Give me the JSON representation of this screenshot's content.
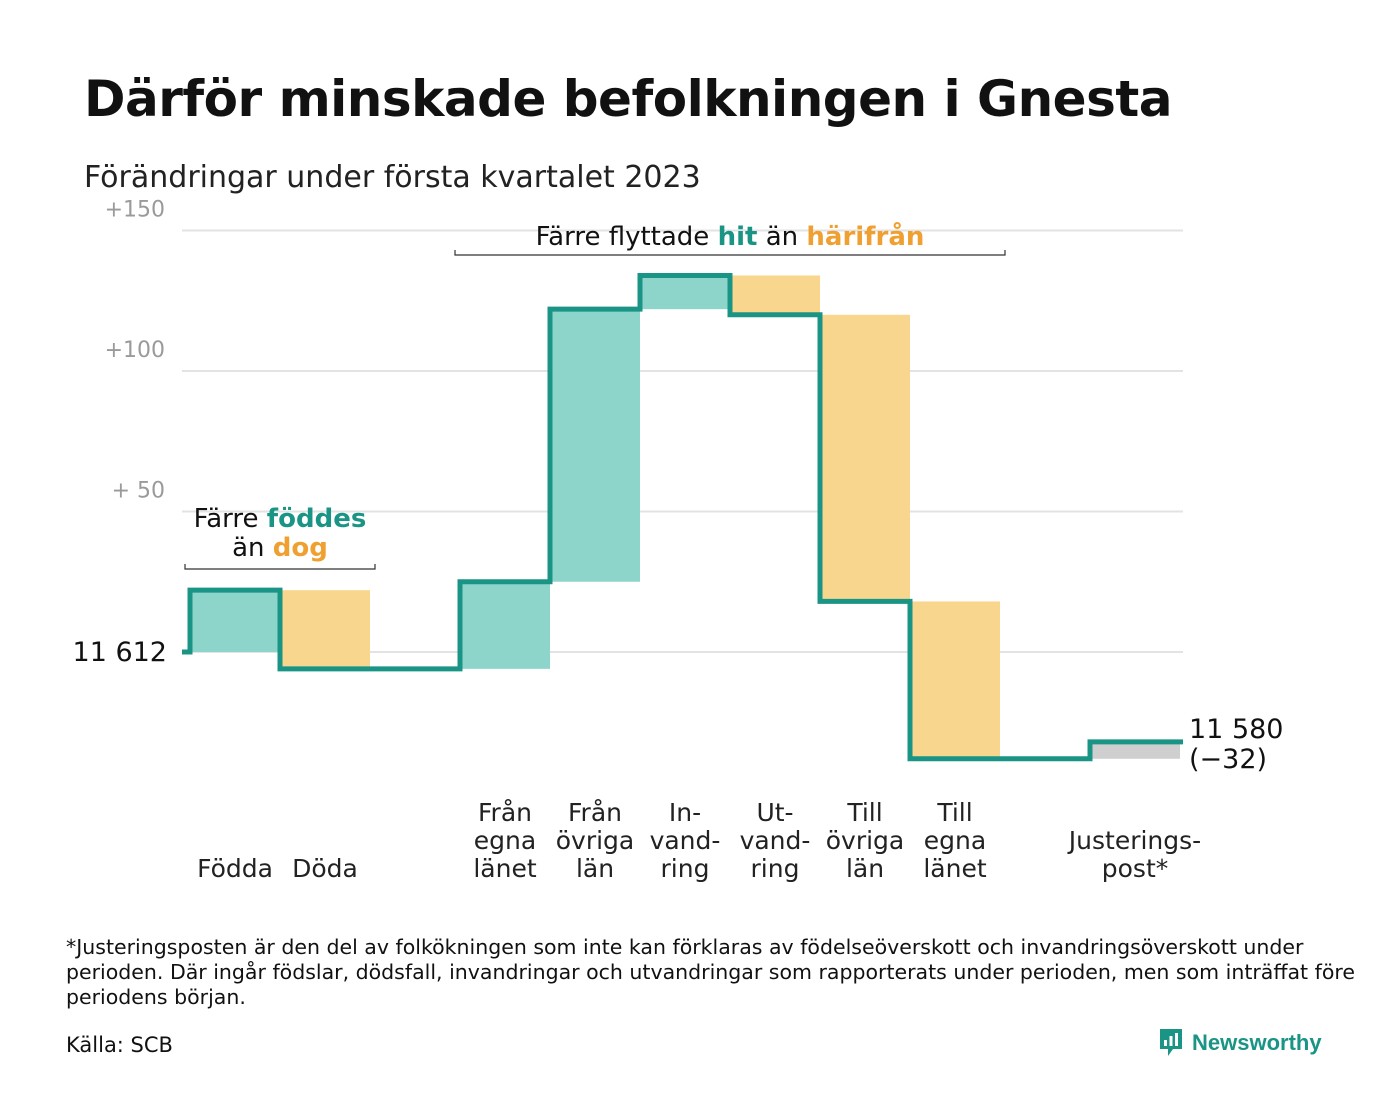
{
  "title": "Därför minskade befolkningen i Gnesta",
  "subtitle": "Förändringar under första kvartalet 2023",
  "colors": {
    "increase_fill": "#8dd5cb",
    "decrease_fill": "#f9d68e",
    "adjustment_fill": "#cfcfcf",
    "line": "#1a9485",
    "teal_text": "#1a9485",
    "orange_text": "#f0a030",
    "grid": "#e3e3e3"
  },
  "chart_data": {
    "type": "waterfall",
    "start_value": 11612,
    "start_label": "11 612",
    "end_label_line1": "11 580",
    "end_label_line2": "(−32)",
    "y_ticks": [
      {
        "value": 50,
        "label": "+ 50"
      },
      {
        "value": 100,
        "label": "+100"
      },
      {
        "value": 150,
        "label": "+150"
      }
    ],
    "grid": true,
    "ylim": [
      -45,
      150
    ],
    "steps": [
      {
        "id": "fodda",
        "label_lines": [
          "Födda"
        ],
        "change": 22,
        "kind": "increase",
        "gap_before": false
      },
      {
        "id": "doda",
        "label_lines": [
          "Döda"
        ],
        "change": -28,
        "kind": "decrease",
        "gap_before": false
      },
      {
        "id": "fran-egna-lanet",
        "label_lines": [
          "Från",
          "egna",
          "länet"
        ],
        "change": 31,
        "kind": "increase",
        "gap_before": true
      },
      {
        "id": "fran-ovriga-lan",
        "label_lines": [
          "Från",
          "övriga",
          "län"
        ],
        "change": 97,
        "kind": "increase",
        "gap_before": false
      },
      {
        "id": "invandring",
        "label_lines": [
          "In-",
          "vand-",
          "ring"
        ],
        "change": 12,
        "kind": "increase",
        "gap_before": false
      },
      {
        "id": "utvandring",
        "label_lines": [
          "Ut-",
          "vand-",
          "ring"
        ],
        "change": -14,
        "kind": "decrease",
        "gap_before": false
      },
      {
        "id": "till-ovriga-lan",
        "label_lines": [
          "Till",
          "övriga",
          "län"
        ],
        "change": -102,
        "kind": "decrease",
        "gap_before": false
      },
      {
        "id": "till-egna-lanet",
        "label_lines": [
          "Till",
          "egna",
          "länet"
        ],
        "change": -56,
        "kind": "decrease",
        "gap_before": false
      },
      {
        "id": "justeringspost",
        "label_lines": [
          "Justerings-",
          "post*"
        ],
        "change": 6,
        "kind": "adjustment",
        "gap_before": true
      }
    ],
    "annotations": [
      {
        "id": "births",
        "line1": [
          {
            "text": "Färre ",
            "style": "plain"
          },
          {
            "text": "föddes",
            "style": "teal"
          }
        ],
        "line2": [
          {
            "text": "än ",
            "style": "plain"
          },
          {
            "text": "dog",
            "style": "orange"
          }
        ],
        "from_step": 0,
        "to_step": 1
      },
      {
        "id": "migration",
        "line1": [
          {
            "text": "Färre flyttade ",
            "style": "plain"
          },
          {
            "text": "hit",
            "style": "teal"
          },
          {
            "text": " än ",
            "style": "plain"
          },
          {
            "text": "härifrån",
            "style": "orange"
          }
        ],
        "from_step": 2,
        "to_step": 7
      }
    ]
  },
  "footnote": "*Justeringsposten är den del av folkökningen som inte kan förklaras av födelseöverskott och invandringsöverskott under perioden. Där ingår födslar, dödsfall, invandringar och utvandringar som rapporterats under perioden, men som inträffat före periodens början.",
  "source": "Källa: SCB",
  "brand": {
    "name": "Newsworthy",
    "icon": "newsworthy-logo-icon"
  }
}
